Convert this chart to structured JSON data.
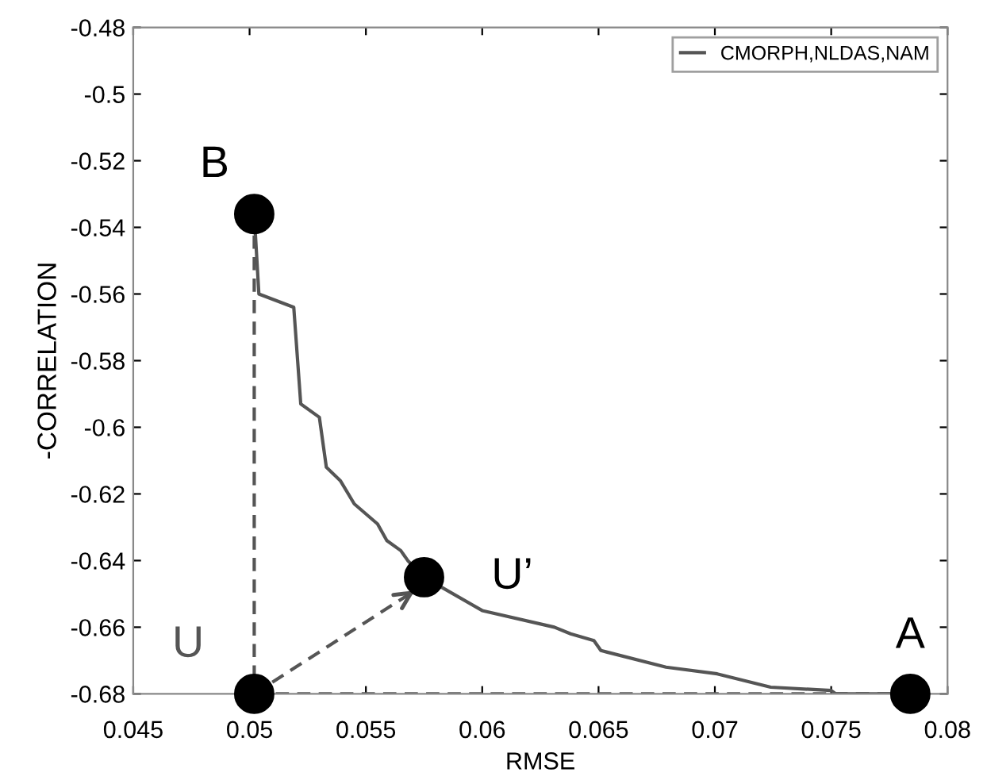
{
  "chart_data": {
    "type": "line",
    "xlabel": "RMSE",
    "ylabel": "-CORRELATION",
    "xlim": [
      0.045,
      0.08
    ],
    "ylim": [
      -0.68,
      -0.48
    ],
    "xticks": [
      0.045,
      0.05,
      0.055,
      0.06,
      0.065,
      0.07,
      0.075,
      0.08
    ],
    "yticks": [
      -0.68,
      -0.66,
      -0.64,
      -0.62,
      -0.6,
      -0.58,
      -0.56,
      -0.54,
      -0.52,
      -0.5,
      -0.48
    ],
    "grid": false,
    "legend": "top right",
    "marker": "none",
    "line_style": "solid",
    "series": [
      {
        "name": "CMORPH,NLDAS,NAM",
        "color": "#555555",
        "x": [
          0.0502,
          0.0504,
          0.0519,
          0.0522,
          0.053,
          0.0533,
          0.0539,
          0.0545,
          0.0555,
          0.0559,
          0.0565,
          0.0568,
          0.0575,
          0.06,
          0.0631,
          0.0638,
          0.0648,
          0.0651,
          0.0679,
          0.0701,
          0.0724,
          0.075,
          0.0752,
          0.0784
        ],
        "values": [
          -0.536,
          -0.56,
          -0.564,
          -0.593,
          -0.597,
          -0.612,
          -0.616,
          -0.623,
          -0.629,
          -0.634,
          -0.637,
          -0.64,
          -0.645,
          -0.655,
          -0.66,
          -0.662,
          -0.664,
          -0.667,
          -0.672,
          -0.674,
          -0.678,
          -0.679,
          -0.68,
          -0.68
        ]
      },
      {
        "color": "#555555",
        "line_style": "dashed",
        "x": [
          0.0502,
          0.0502
        ],
        "values": [
          -0.536,
          -0.68
        ]
      },
      {
        "color": "#555555",
        "line_style": "dashed",
        "x": [
          0.0502,
          0.0784
        ],
        "values": [
          -0.68,
          -0.68
        ]
      },
      {
        "color": "#555555",
        "line_style": "dashed",
        "x": [
          0.0502,
          0.0571
        ],
        "values": [
          -0.68,
          -0.649
        ]
      },
      {
        "type": "scatter",
        "color": "#000000",
        "marker": "circle",
        "x": [
          0.0502,
          0.0575,
          0.0502,
          0.0784
        ],
        "values": [
          -0.536,
          -0.645,
          -0.68,
          -0.68
        ]
      }
    ],
    "annotations": [
      {
        "text": "B",
        "x": 0.0502,
        "y": -0.536
      },
      {
        "text": "U’",
        "x": 0.0575,
        "y": -0.645
      },
      {
        "text": "U",
        "x": 0.0502,
        "y": -0.68
      },
      {
        "text": "A",
        "x": 0.0784,
        "y": -0.68
      }
    ]
  }
}
